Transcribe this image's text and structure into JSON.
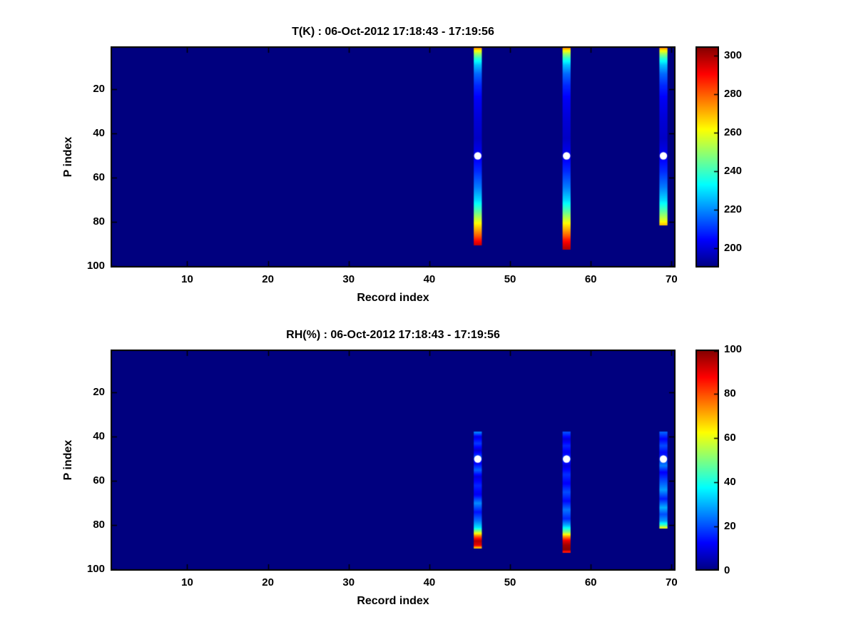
{
  "figure": {
    "background": "#ffffff",
    "text_color": "#000000"
  },
  "chart_data": [
    {
      "type": "heatmap",
      "title": "T(K) : 06-Oct-2012 17:18:43 - 17:19:56",
      "xlabel": "Record index",
      "ylabel": "P index",
      "xlim": [
        0.5,
        70.5
      ],
      "ylim": [
        0.5,
        100.5
      ],
      "y_reversed": true,
      "xticks": [
        10,
        20,
        30,
        40,
        50,
        60,
        70
      ],
      "yticks": [
        20,
        40,
        60,
        80,
        100
      ],
      "colormap": "jet",
      "grid": false,
      "background_value": 190,
      "colorbar": {
        "min": 190,
        "max": 305,
        "ticks": [
          200,
          220,
          240,
          260,
          280,
          300
        ],
        "position": "right"
      },
      "markers": [
        {
          "x": 46,
          "y": 50
        },
        {
          "x": 57,
          "y": 50
        },
        {
          "x": 69,
          "y": 50
        }
      ],
      "columns": [
        {
          "record": 46,
          "p_start": 1,
          "p_end": 90,
          "profile": [
            [
              1,
              278
            ],
            [
              2,
              266
            ],
            [
              4,
              250
            ],
            [
              6,
              238
            ],
            [
              9,
              226
            ],
            [
              13,
              216
            ],
            [
              18,
              209
            ],
            [
              25,
              203
            ],
            [
              33,
              200
            ],
            [
              42,
              198
            ],
            [
              50,
              203
            ],
            [
              57,
              209
            ],
            [
              64,
              218
            ],
            [
              70,
              229
            ],
            [
              75,
              243
            ],
            [
              79,
              257
            ],
            [
              83,
              270
            ],
            [
              86,
              280
            ],
            [
              88,
              288
            ],
            [
              90,
              296
            ]
          ]
        },
        {
          "record": 57,
          "p_start": 1,
          "p_end": 92,
          "profile": [
            [
              1,
              278
            ],
            [
              2,
              266
            ],
            [
              4,
              250
            ],
            [
              6,
              238
            ],
            [
              9,
              226
            ],
            [
              13,
              216
            ],
            [
              18,
              209
            ],
            [
              25,
              203
            ],
            [
              33,
              200
            ],
            [
              42,
              198
            ],
            [
              50,
              203
            ],
            [
              57,
              209
            ],
            [
              64,
              218
            ],
            [
              70,
              229
            ],
            [
              75,
              243
            ],
            [
              79,
              257
            ],
            [
              83,
              270
            ],
            [
              86,
              280
            ],
            [
              88,
              288
            ],
            [
              90,
              294
            ],
            [
              92,
              299
            ]
          ]
        },
        {
          "record": 69,
          "p_start": 1,
          "p_end": 81,
          "profile": [
            [
              1,
              278
            ],
            [
              2,
              266
            ],
            [
              4,
              250
            ],
            [
              6,
              238
            ],
            [
              9,
              226
            ],
            [
              13,
              216
            ],
            [
              18,
              209
            ],
            [
              25,
              203
            ],
            [
              33,
              200
            ],
            [
              42,
              198
            ],
            [
              50,
              203
            ],
            [
              57,
              209
            ],
            [
              64,
              218
            ],
            [
              70,
              229
            ],
            [
              75,
              243
            ],
            [
              79,
              258
            ],
            [
              81,
              268
            ]
          ]
        }
      ]
    },
    {
      "type": "heatmap",
      "title": "RH(%) : 06-Oct-2012 17:18:43 - 17:19:56",
      "xlabel": "Record index",
      "ylabel": "P index",
      "xlim": [
        0.5,
        70.5
      ],
      "ylim": [
        0.5,
        100.5
      ],
      "y_reversed": true,
      "xticks": [
        10,
        20,
        30,
        40,
        50,
        60,
        70
      ],
      "yticks": [
        20,
        40,
        60,
        80,
        100
      ],
      "colormap": "jet",
      "grid": false,
      "background_value": 0,
      "colorbar": {
        "min": 0,
        "max": 100,
        "ticks": [
          0,
          20,
          40,
          60,
          80,
          100
        ],
        "position": "right"
      },
      "markers": [
        {
          "x": 46,
          "y": 50
        },
        {
          "x": 57,
          "y": 50
        },
        {
          "x": 69,
          "y": 50
        }
      ],
      "columns": [
        {
          "record": 46,
          "p_start": 38,
          "p_end": 90,
          "profile": [
            [
              38,
              25
            ],
            [
              40,
              10
            ],
            [
              43,
              18
            ],
            [
              46,
              8
            ],
            [
              49,
              20
            ],
            [
              52,
              12
            ],
            [
              55,
              22
            ],
            [
              58,
              9
            ],
            [
              62,
              16
            ],
            [
              66,
              11
            ],
            [
              70,
              26
            ],
            [
              74,
              14
            ],
            [
              78,
              24
            ],
            [
              81,
              35
            ],
            [
              83,
              55
            ],
            [
              85,
              78
            ],
            [
              87,
              95
            ],
            [
              89,
              90
            ],
            [
              90,
              70
            ]
          ]
        },
        {
          "record": 57,
          "p_start": 38,
          "p_end": 92,
          "profile": [
            [
              38,
              20
            ],
            [
              41,
              9
            ],
            [
              44,
              16
            ],
            [
              47,
              11
            ],
            [
              50,
              19
            ],
            [
              53,
              9
            ],
            [
              57,
              17
            ],
            [
              61,
              12
            ],
            [
              65,
              20
            ],
            [
              69,
              13
            ],
            [
              73,
              24
            ],
            [
              77,
              16
            ],
            [
              80,
              30
            ],
            [
              83,
              50
            ],
            [
              85,
              72
            ],
            [
              87,
              90
            ],
            [
              89,
              97
            ],
            [
              91,
              99
            ],
            [
              92,
              85
            ]
          ]
        },
        {
          "record": 69,
          "p_start": 38,
          "p_end": 81,
          "profile": [
            [
              38,
              22
            ],
            [
              41,
              12
            ],
            [
              44,
              20
            ],
            [
              47,
              13
            ],
            [
              50,
              17
            ],
            [
              53,
              25
            ],
            [
              56,
              12
            ],
            [
              60,
              20
            ],
            [
              64,
              28
            ],
            [
              68,
              15
            ],
            [
              72,
              30
            ],
            [
              75,
              20
            ],
            [
              78,
              28
            ],
            [
              80,
              45
            ],
            [
              81,
              60
            ]
          ]
        }
      ]
    }
  ]
}
